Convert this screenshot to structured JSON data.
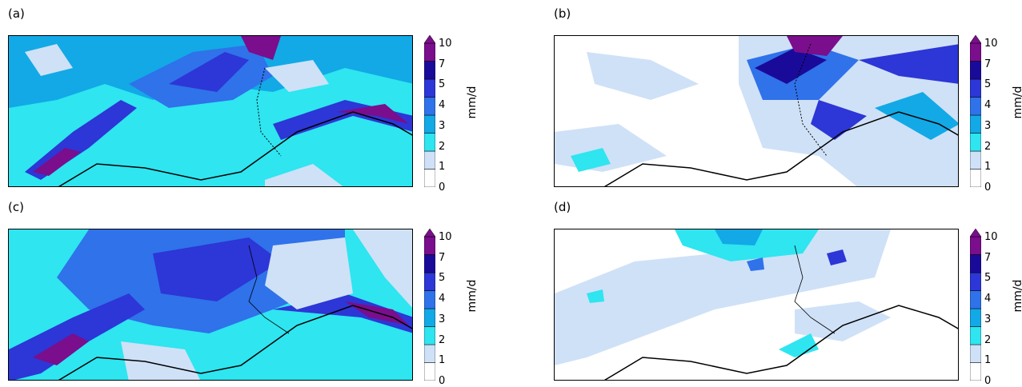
{
  "colorbar": {
    "unit": "mm/d",
    "ticks": [
      "0",
      "1",
      "2",
      "3",
      "4",
      "5",
      "7",
      "10"
    ],
    "colors": [
      "#ffffff",
      "#cfe1f7",
      "#2ee5f0",
      "#12a9e6",
      "#2f72ea",
      "#2d36d6",
      "#1a0a9a",
      "#7a0e8c"
    ]
  },
  "panels": [
    {
      "label": "(a)"
    },
    {
      "label": "(b)"
    },
    {
      "label": "(c)"
    },
    {
      "label": "(d)"
    }
  ],
  "chart_data": {
    "type": "heatmap",
    "panel_labels": [
      "(a)",
      "(b)",
      "(c)",
      "(d)"
    ],
    "colorbar_unit": "mm/d",
    "colorbar_levels": [
      0,
      1,
      2,
      3,
      4,
      5,
      7,
      10
    ],
    "colorbar_extend": "max",
    "panel_mean_level": {
      "(a)": 3,
      "(b)": 1,
      "(c)": 3,
      "(d)": 1
    }
  }
}
